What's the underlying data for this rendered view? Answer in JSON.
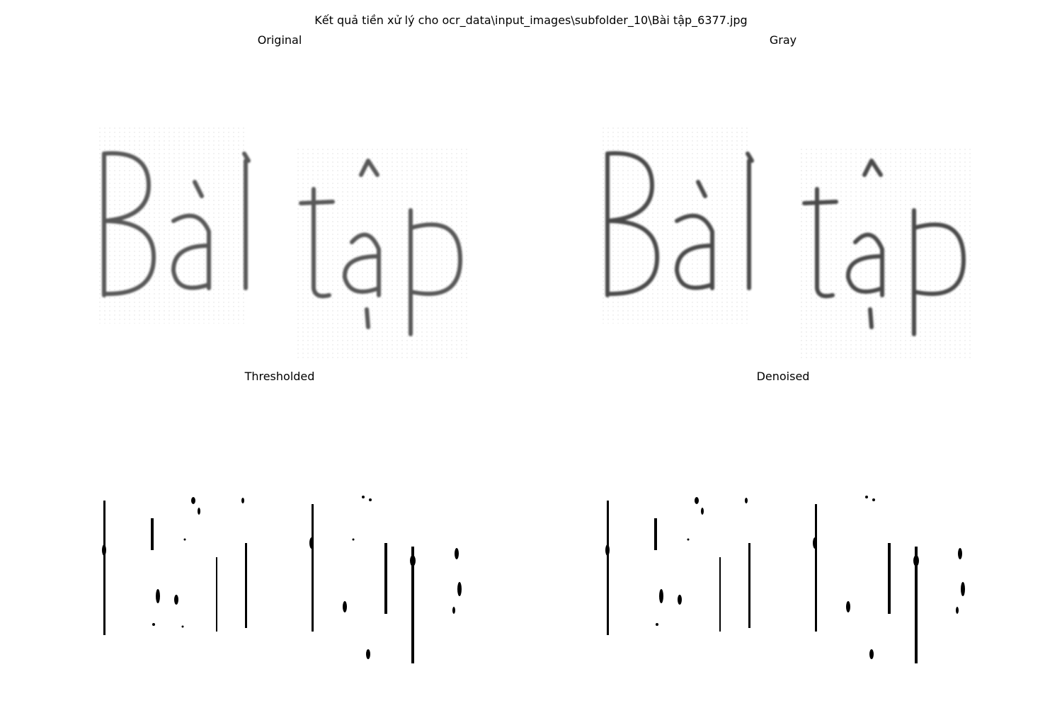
{
  "figure": {
    "suptitle": "Kết quả tiền xử lý cho ocr_data\\input_images\\subfolder_10\\Bài tập_6377.jpg"
  },
  "panels": {
    "original": {
      "title": "Original"
    },
    "gray": {
      "title": "Gray"
    },
    "thresholded": {
      "title": "Thresholded"
    },
    "denoised": {
      "title": "Denoised"
    }
  },
  "image_text": "Bài tập"
}
